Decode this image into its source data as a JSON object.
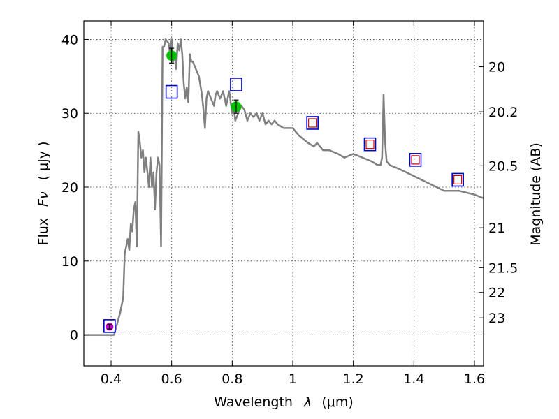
{
  "chart_data": {
    "type": "line",
    "title": "",
    "xlabel": "Wavelength",
    "xlabel_symbol": "λ",
    "xlabel_unit": "(μm)",
    "ylabel": "Flux",
    "ylabel_symbol": "Fν",
    "ylabel_unit": "( μJy )",
    "y2label": "Magnitude (AB)",
    "xlim": [
      0.31,
      1.63
    ],
    "ylim": [
      -4.2,
      42.5
    ],
    "grid": true,
    "x_ticks": [
      0.4,
      0.6,
      0.8,
      1.0,
      1.2,
      1.4,
      1.6
    ],
    "x_tick_labels": [
      "0.4",
      "0.6",
      "0.8",
      "1",
      "1.2",
      "1.4",
      "1.6"
    ],
    "y_ticks": [
      0,
      10,
      20,
      30,
      40
    ],
    "y_tick_labels": [
      "0",
      "10",
      "20",
      "30",
      "40"
    ],
    "y2_ticks": [
      {
        "label": "20",
        "flux": 36.3
      },
      {
        "label": "20.2",
        "flux": 30.2
      },
      {
        "label": "20.5",
        "flux": 22.9
      },
      {
        "label": "21",
        "flux": 14.5
      },
      {
        "label": "21.5",
        "flux": 9.1
      },
      {
        "label": "22",
        "flux": 5.75
      },
      {
        "label": "23",
        "flux": 2.3
      }
    ],
    "series": [
      {
        "name": "SED model",
        "color": "#808080",
        "x": [
          0.31,
          0.4,
          0.41,
          0.42,
          0.43,
          0.44,
          0.445,
          0.45,
          0.455,
          0.46,
          0.465,
          0.47,
          0.475,
          0.48,
          0.485,
          0.49,
          0.495,
          0.5,
          0.505,
          0.51,
          0.515,
          0.52,
          0.525,
          0.53,
          0.535,
          0.54,
          0.545,
          0.55,
          0.555,
          0.56,
          0.565,
          0.57,
          0.575,
          0.58,
          0.59,
          0.595,
          0.6,
          0.605,
          0.61,
          0.615,
          0.62,
          0.625,
          0.63,
          0.635,
          0.64,
          0.645,
          0.65,
          0.655,
          0.66,
          0.665,
          0.67,
          0.68,
          0.69,
          0.7,
          0.705,
          0.71,
          0.715,
          0.72,
          0.73,
          0.74,
          0.745,
          0.75,
          0.76,
          0.77,
          0.78,
          0.79,
          0.8,
          0.805,
          0.81,
          0.82,
          0.83,
          0.84,
          0.85,
          0.86,
          0.87,
          0.88,
          0.89,
          0.9,
          0.91,
          0.92,
          0.93,
          0.94,
          0.95,
          0.97,
          1.0,
          1.02,
          1.05,
          1.07,
          1.08,
          1.1,
          1.12,
          1.15,
          1.17,
          1.2,
          1.23,
          1.26,
          1.28,
          1.29,
          1.295,
          1.3,
          1.305,
          1.31,
          1.32,
          1.35,
          1.4,
          1.45,
          1.5,
          1.55,
          1.6,
          1.63
        ],
        "y": [
          0,
          0,
          0,
          1.5,
          3,
          5,
          11,
          12,
          13,
          11.5,
          15,
          14,
          17,
          18,
          12,
          27.5,
          26,
          24,
          25,
          22,
          24,
          22,
          20,
          24,
          20,
          22,
          17,
          22,
          24,
          23,
          12,
          39,
          39,
          40,
          39.5,
          38,
          40,
          37,
          38,
          36,
          39.5,
          38.5,
          40,
          38,
          34,
          32,
          33.5,
          31.5,
          38,
          37,
          37,
          36,
          35,
          32.5,
          30.5,
          28,
          32,
          33,
          32,
          31,
          32.5,
          33,
          32,
          33,
          31,
          33,
          30,
          31,
          29,
          30,
          31,
          30.5,
          29,
          30,
          29.5,
          30,
          29,
          30,
          28.5,
          29,
          28.5,
          29,
          28.5,
          28,
          28,
          27,
          26,
          25.5,
          26,
          25,
          25,
          24.5,
          24,
          24.5,
          24,
          23.5,
          23,
          23,
          24,
          32.5,
          26,
          23.5,
          23,
          22.5,
          21.5,
          20.5,
          19.5,
          19.5,
          19,
          18.5
        ]
      },
      {
        "name": "Observed photometry (green)",
        "color": "#00c000",
        "points": [
          {
            "x": 0.6,
            "y": 37.8,
            "err": 1.0
          },
          {
            "x": 0.813,
            "y": 30.9,
            "err": 0.9
          }
        ]
      },
      {
        "name": "Observed photometry (magenta)",
        "color": "#c000c0",
        "points": [
          {
            "x": 0.395,
            "y": 1.1,
            "err": 0.3
          }
        ]
      },
      {
        "name": "Model band fluxes (blue squares)",
        "color": "#0000cc",
        "points": [
          {
            "x": 0.395,
            "y": 1.2
          },
          {
            "x": 0.6,
            "y": 32.9
          },
          {
            "x": 0.813,
            "y": 33.9
          },
          {
            "x": 1.065,
            "y": 28.7
          },
          {
            "x": 1.255,
            "y": 25.8
          },
          {
            "x": 1.405,
            "y": 23.7
          },
          {
            "x": 1.545,
            "y": 21.0
          }
        ]
      },
      {
        "name": "Model band fluxes (red squares)",
        "color": "#cc0000",
        "points": [
          {
            "x": 1.065,
            "y": 28.7
          },
          {
            "x": 1.255,
            "y": 25.8
          },
          {
            "x": 1.405,
            "y": 23.7
          },
          {
            "x": 1.545,
            "y": 21.0
          }
        ]
      }
    ]
  }
}
